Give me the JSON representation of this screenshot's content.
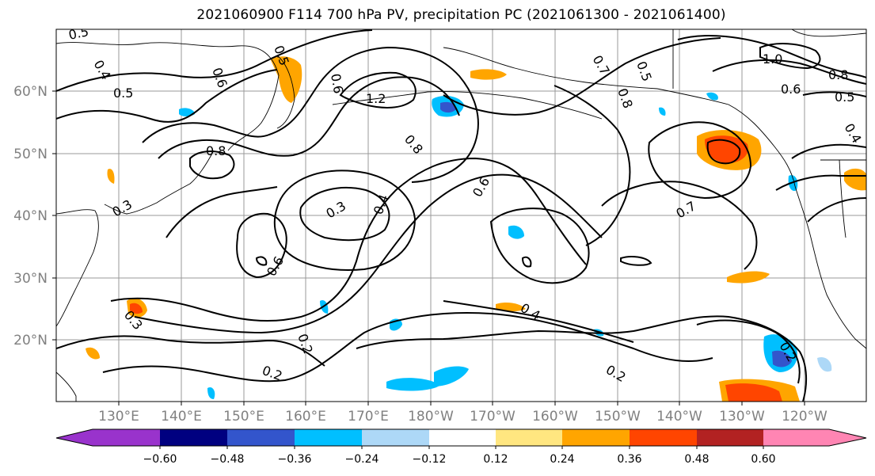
{
  "title": "2021060900 F114 700 hPa PV, precipitation PC (2021061300 - 2021061400)",
  "lat_labels": [
    "60°N",
    "50°N",
    "40°N",
    "30°N",
    "20°N"
  ],
  "lon_labels": [
    "130°E",
    "140°E",
    "150°E",
    "160°E",
    "170°E",
    "180°W",
    "170°W",
    "160°W",
    "150°W",
    "140°W",
    "130°W",
    "120°W"
  ],
  "contour_labels": [
    "0.5",
    "0.4",
    "0.5",
    "0.6",
    "0.5",
    "0.6",
    "1.2",
    "0.8",
    "0.7",
    "0.5",
    "0.8",
    "1.0",
    "0.8",
    "0.6",
    "0.5",
    "0.4",
    "0.8",
    "0.3",
    "0.4",
    "0.6",
    "0.7",
    "0.3",
    "0.6",
    "0.3",
    "0.4",
    "0.2",
    "0.2",
    "0.2",
    "0.2"
  ],
  "colorbar": {
    "tick_labels": [
      "−0.60",
      "−0.48",
      "−0.36",
      "−0.24",
      "−0.12",
      "0.12",
      "0.24",
      "0.36",
      "0.48",
      "0.60"
    ],
    "colors": [
      "#9933cc",
      "#000080",
      "#3355cc",
      "#00bfff",
      "#add8f7",
      "#ffffff",
      "#ffe680",
      "#ffa500",
      "#ff4500",
      "#b22222",
      "#ff85b3"
    ]
  },
  "colors": {
    "land_outline": "#000000",
    "gridline": "#999999",
    "contour": "#000000"
  }
}
